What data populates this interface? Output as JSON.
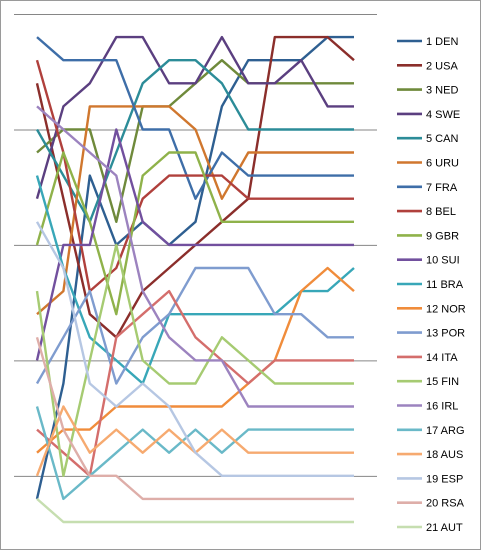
{
  "chart_data": {
    "type": "line",
    "title": "",
    "xlabel": "",
    "ylabel": "",
    "grid": "horizontal",
    "legend_position": "right",
    "x": [
      1,
      2,
      3,
      4,
      5,
      6,
      7,
      8,
      9,
      10,
      11,
      12,
      13
    ],
    "y_reversed": true,
    "ylim": [
      1,
      21
    ],
    "series": [
      {
        "name": "1 DEN",
        "color": "#2e5f91",
        "values": [
          21,
          16,
          7,
          10,
          9,
          10,
          9,
          4,
          2,
          2,
          2,
          1,
          1
        ]
      },
      {
        "name": "2 USA",
        "color": "#8b2e2b",
        "values": [
          3,
          8,
          13,
          14,
          12,
          11,
          10,
          9,
          8,
          1,
          1,
          1,
          2
        ]
      },
      {
        "name": "3 NED",
        "color": "#6f8a3b",
        "values": [
          6,
          5,
          5,
          9,
          4,
          4,
          3,
          2,
          3,
          3,
          3,
          3,
          3
        ]
      },
      {
        "name": "4 SWE",
        "color": "#5b3f80",
        "values": [
          8,
          4,
          3,
          1,
          1,
          3,
          3,
          1,
          3,
          3,
          2,
          4,
          4
        ]
      },
      {
        "name": "5 CAN",
        "color": "#2c8c98",
        "values": [
          5,
          7,
          9,
          6,
          3,
          2,
          2,
          3,
          5,
          5,
          5,
          5,
          5
        ]
      },
      {
        "name": "6 URU",
        "color": "#d0772e",
        "values": [
          13,
          12,
          4,
          4,
          4,
          4,
          5,
          8,
          6,
          6,
          6,
          6,
          6
        ]
      },
      {
        "name": "7 FRA",
        "color": "#3e6ea8",
        "values": [
          1,
          2,
          2,
          2,
          5,
          5,
          8,
          6,
          7,
          7,
          7,
          7,
          7
        ]
      },
      {
        "name": "8 BEL",
        "color": "#b0403c",
        "values": [
          2,
          6,
          12,
          11,
          8,
          7,
          7,
          7,
          8,
          8,
          8,
          8,
          8
        ]
      },
      {
        "name": "9 GBR",
        "color": "#8fb24a",
        "values": [
          10,
          6,
          9,
          13,
          7,
          6,
          6,
          9,
          9,
          9,
          9,
          9,
          9
        ]
      },
      {
        "name": "10 SUI",
        "color": "#72509e",
        "values": [
          15,
          10,
          10,
          5,
          9,
          10,
          10,
          10,
          10,
          10,
          10,
          10,
          10
        ]
      },
      {
        "name": "11 BRA",
        "color": "#38a7b8",
        "values": [
          7,
          11,
          14,
          15,
          16,
          13,
          13,
          13,
          13,
          13,
          12,
          12,
          11
        ]
      },
      {
        "name": "12 NOR",
        "color": "#f08c3b",
        "values": [
          19,
          18,
          18,
          17,
          17,
          17,
          17,
          17,
          16,
          15,
          12,
          11,
          12
        ]
      },
      {
        "name": "13 POR",
        "color": "#7f9ccf",
        "values": [
          16,
          14,
          12,
          16,
          14,
          13,
          11,
          11,
          11,
          13,
          13,
          14,
          14
        ]
      },
      {
        "name": "14 ITA",
        "color": "#d46e6c",
        "values": [
          18,
          19,
          20,
          14,
          13,
          12,
          14,
          15,
          16,
          15,
          15,
          15,
          15
        ]
      },
      {
        "name": "15 FIN",
        "color": "#a6cb72",
        "values": [
          12,
          20,
          15,
          10,
          15,
          16,
          16,
          14,
          15,
          16,
          16,
          16,
          16
        ]
      },
      {
        "name": "16 IRL",
        "color": "#9c83bf",
        "values": [
          4,
          5,
          6,
          7,
          12,
          14,
          15,
          15,
          17,
          17,
          17,
          17,
          17
        ]
      },
      {
        "name": "17 ARG",
        "color": "#6ab9c8",
        "values": [
          17,
          21,
          20,
          19,
          18,
          19,
          18,
          19,
          18,
          18,
          18,
          18,
          18
        ]
      },
      {
        "name": "18 AUS",
        "color": "#f6aa70",
        "values": [
          20,
          17,
          19,
          18,
          19,
          18,
          19,
          18,
          19,
          19,
          19,
          19,
          19
        ]
      },
      {
        "name": "19 ESP",
        "color": "#b6c7e3",
        "values": [
          9,
          11,
          16,
          17,
          16,
          17,
          19,
          20,
          20,
          20,
          20,
          20,
          20
        ]
      },
      {
        "name": "20 RSA",
        "color": "#deaea9",
        "values": [
          14,
          18,
          20,
          20,
          21,
          21,
          21,
          21,
          21,
          21,
          21,
          21,
          21
        ]
      },
      {
        "name": "21 AUT",
        "color": "#c6deb0",
        "values": [
          21,
          22,
          22,
          22,
          22,
          22,
          22,
          22,
          22,
          22,
          22,
          22,
          22
        ]
      }
    ]
  }
}
